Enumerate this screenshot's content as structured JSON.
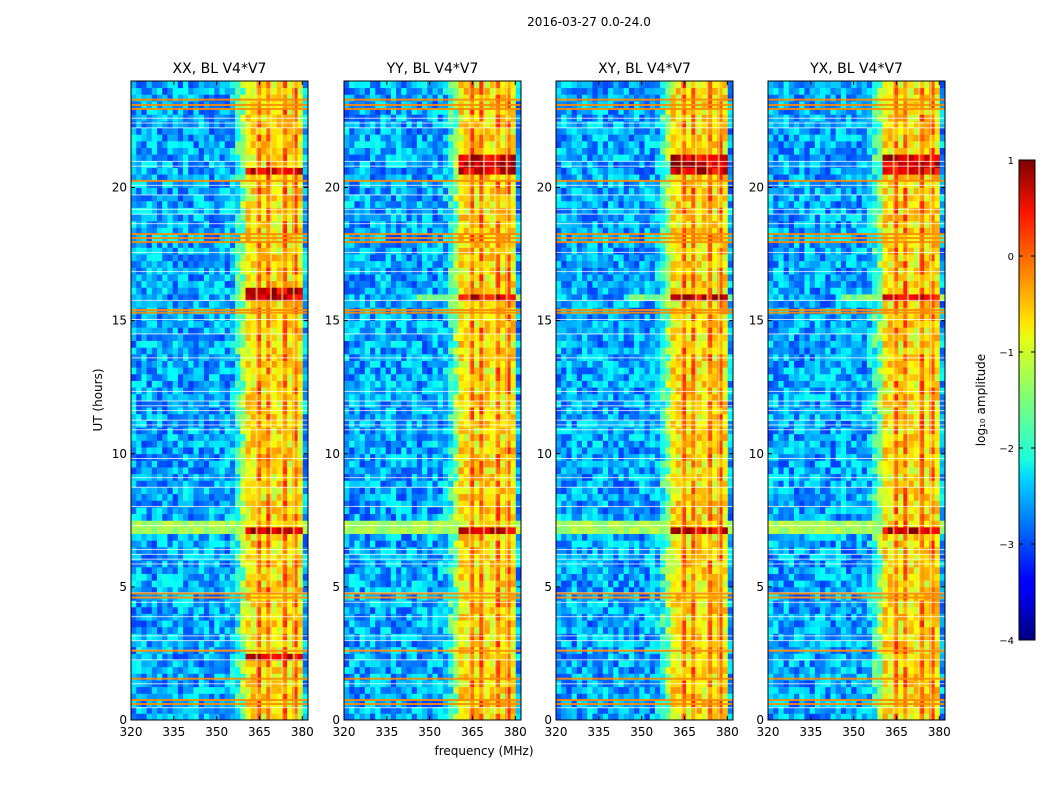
{
  "figure": {
    "suptitle": "2016-03-27 0.0-24.0",
    "xlabel": "frequency (MHz)",
    "ylabel": "UT (hours)"
  },
  "chart_data": {
    "type": "heatmap",
    "xlim": [
      320,
      382
    ],
    "ylim": [
      0,
      24
    ],
    "xticks": [
      "320",
      "335",
      "350",
      "365",
      "380"
    ],
    "xtick_values": [
      320,
      335,
      350,
      365,
      380
    ],
    "yticks": [
      "0",
      "5",
      "10",
      "15",
      "20"
    ],
    "ytick_values": [
      0,
      5,
      10,
      15,
      20
    ],
    "colorscale": "jet",
    "panels": [
      {
        "title": "XX, BL V4*V7",
        "pol": "XX",
        "bright_hours": [
          [
            2.3,
            2.5
          ],
          [
            6.9,
            7.3
          ],
          [
            15.7,
            16.3
          ],
          [
            20.4,
            20.7
          ]
        ]
      },
      {
        "title": "YY, BL V4*V7",
        "pol": "YY",
        "bright_hours": [
          [
            6.9,
            7.3
          ],
          [
            15.7,
            16.0
          ],
          [
            20.4,
            21.2
          ]
        ]
      },
      {
        "title": "XY, BL V4*V7",
        "pol": "XY",
        "bright_hours": [
          [
            6.9,
            7.3
          ],
          [
            15.7,
            16.0
          ],
          [
            20.4,
            21.2
          ]
        ]
      },
      {
        "title": "YX, BL V4*V7",
        "pol": "YX",
        "bright_hours": [
          [
            6.9,
            7.3
          ],
          [
            15.7,
            16.0
          ],
          [
            20.4,
            21.2
          ]
        ]
      }
    ],
    "rfi_band_MHz": [
      360,
      381
    ],
    "rfi_channels_MHz": [
      364,
      369,
      373,
      377
    ],
    "colorbar": {
      "label": "log₁₀ amplitude",
      "range": [
        -4,
        1
      ],
      "ticks": [
        "1",
        "0",
        "−1",
        "−2",
        "−3",
        "−4"
      ],
      "tick_values": [
        1,
        0,
        -1,
        -2,
        -3,
        -4
      ]
    }
  }
}
